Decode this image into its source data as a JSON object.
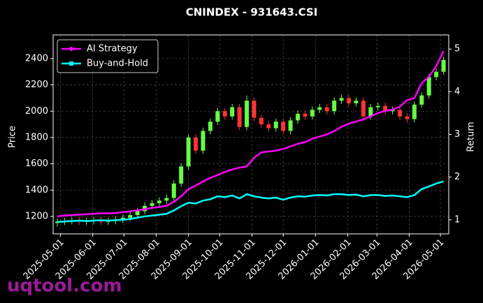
{
  "chart_data": {
    "type": "candlestick",
    "title": "CNINDEX - 931643.CSI",
    "ylabel": "Price",
    "y2label": "Return",
    "watermark": "uqtool.com",
    "x": [
      "2025-04-28",
      "2025-05-05",
      "2025-05-12",
      "2025-05-19",
      "2025-05-26",
      "2025-06-02",
      "2025-06-09",
      "2025-06-16",
      "2025-06-23",
      "2025-06-30",
      "2025-07-07",
      "2025-07-14",
      "2025-07-21",
      "2025-07-28",
      "2025-08-04",
      "2025-08-11",
      "2025-08-18",
      "2025-08-25",
      "2025-09-01",
      "2025-09-08",
      "2025-09-15",
      "2025-09-22",
      "2025-09-29",
      "2025-10-06",
      "2025-10-13",
      "2025-10-20",
      "2025-10-27",
      "2025-11-03",
      "2025-11-10",
      "2025-11-17",
      "2025-11-24",
      "2025-12-01",
      "2025-12-08",
      "2025-12-15",
      "2025-12-22",
      "2025-12-29",
      "2026-01-05",
      "2026-01-12",
      "2026-01-19",
      "2026-01-26",
      "2026-02-02",
      "2026-02-09",
      "2026-02-16",
      "2026-02-23",
      "2026-03-02",
      "2026-03-09",
      "2026-03-16",
      "2026-03-23",
      "2026-03-30",
      "2026-04-06",
      "2026-04-13",
      "2026-04-20",
      "2026-04-27",
      "2026-05-04"
    ],
    "open": [
      1150,
      1160,
      1165,
      1170,
      1160,
      1165,
      1170,
      1160,
      1165,
      1175,
      1190,
      1210,
      1240,
      1280,
      1300,
      1320,
      1340,
      1450,
      1580,
      1800,
      1700,
      1850,
      1920,
      2000,
      1960,
      2030,
      1880,
      2080,
      1950,
      1900,
      1870,
      1920,
      1850,
      1930,
      1980,
      1960,
      2010,
      2030,
      2000,
      2080,
      2100,
      2060,
      2080,
      1960,
      2030,
      2040,
      2000,
      2010,
      1960,
      1940,
      2050,
      2120,
      2260,
      2300
    ],
    "high": [
      1185,
      1190,
      1195,
      1195,
      1190,
      1195,
      1195,
      1190,
      1200,
      1215,
      1235,
      1265,
      1305,
      1325,
      1345,
      1365,
      1475,
      1605,
      1825,
      1825,
      1875,
      1945,
      2025,
      2025,
      2055,
      2055,
      2120,
      2105,
      1975,
      1925,
      1945,
      1945,
      1955,
      2005,
      2005,
      2035,
      2055,
      2055,
      2105,
      2125,
      2125,
      2105,
      2105,
      2055,
      2065,
      2065,
      2035,
      2035,
      1985,
      2075,
      2145,
      2285,
      2325,
      2415
    ],
    "low": [
      1125,
      1135,
      1140,
      1135,
      1135,
      1140,
      1135,
      1135,
      1140,
      1150,
      1165,
      1185,
      1215,
      1255,
      1275,
      1295,
      1315,
      1425,
      1555,
      1675,
      1675,
      1825,
      1895,
      1935,
      1935,
      1855,
      1855,
      1925,
      1875,
      1845,
      1845,
      1825,
      1825,
      1905,
      1935,
      1935,
      1985,
      1975,
      1975,
      2055,
      2035,
      2035,
      1935,
      1935,
      2005,
      1975,
      1975,
      1935,
      1915,
      1915,
      2025,
      2095,
      2235,
      2275
    ],
    "close": [
      1160,
      1165,
      1170,
      1160,
      1165,
      1170,
      1160,
      1165,
      1175,
      1190,
      1210,
      1240,
      1280,
      1300,
      1320,
      1340,
      1450,
      1580,
      1800,
      1700,
      1850,
      1920,
      2000,
      1960,
      2030,
      1880,
      2080,
      1950,
      1900,
      1870,
      1920,
      1850,
      1930,
      1980,
      1960,
      2010,
      2030,
      2000,
      2080,
      2100,
      2060,
      2080,
      1960,
      2030,
      2040,
      2000,
      2010,
      1960,
      1940,
      2050,
      2120,
      2260,
      2300,
      2390
    ],
    "up_color": "#66ff44",
    "down_color": "#ff3333",
    "series": [
      {
        "name": "AI Strategy",
        "color": "#ff00ff",
        "marker": "circle",
        "axis": "y2",
        "values": [
          1.08,
          1.1,
          1.11,
          1.12,
          1.13,
          1.14,
          1.15,
          1.15,
          1.16,
          1.18,
          1.2,
          1.22,
          1.25,
          1.28,
          1.3,
          1.33,
          1.42,
          1.55,
          1.72,
          1.8,
          1.9,
          1.98,
          2.05,
          2.12,
          2.18,
          2.22,
          2.25,
          2.45,
          2.58,
          2.6,
          2.62,
          2.66,
          2.72,
          2.78,
          2.82,
          2.9,
          2.95,
          3.0,
          3.08,
          3.18,
          3.25,
          3.3,
          3.35,
          3.42,
          3.5,
          3.55,
          3.58,
          3.65,
          3.8,
          3.85,
          4.2,
          4.35,
          4.6,
          4.95
        ]
      },
      {
        "name": "Buy-and-Hold",
        "color": "#00ffff",
        "marker": "square",
        "axis": "y2",
        "values": [
          0.95,
          0.96,
          0.97,
          0.98,
          0.97,
          0.98,
          0.99,
          0.98,
          0.99,
          1.0,
          1.02,
          1.05,
          1.08,
          1.1,
          1.12,
          1.14,
          1.22,
          1.32,
          1.4,
          1.38,
          1.45,
          1.48,
          1.55,
          1.53,
          1.57,
          1.5,
          1.6,
          1.55,
          1.52,
          1.5,
          1.52,
          1.47,
          1.52,
          1.55,
          1.54,
          1.57,
          1.58,
          1.57,
          1.6,
          1.6,
          1.58,
          1.59,
          1.55,
          1.58,
          1.58,
          1.56,
          1.57,
          1.55,
          1.53,
          1.58,
          1.72,
          1.78,
          1.85,
          1.9
        ]
      }
    ],
    "xlim": [
      "2025-04-24",
      "2026-05-09"
    ],
    "xticks": [
      "2025-05-01",
      "2025-06-01",
      "2025-07-01",
      "2025-08-01",
      "2025-09-01",
      "2025-10-01",
      "2025-11-01",
      "2025-12-01",
      "2026-01-01",
      "2026-02-01",
      "2026-03-01",
      "2026-04-01",
      "2026-05-01"
    ],
    "ylim": [
      1067,
      2580
    ],
    "yticks": [
      1200,
      1400,
      1600,
      1800,
      2000,
      2200,
      2400
    ],
    "y2lim": [
      0.67,
      5.33
    ],
    "y2ticks": [
      1,
      2,
      3,
      4,
      5
    ],
    "grid": true,
    "legend": "upper left"
  }
}
